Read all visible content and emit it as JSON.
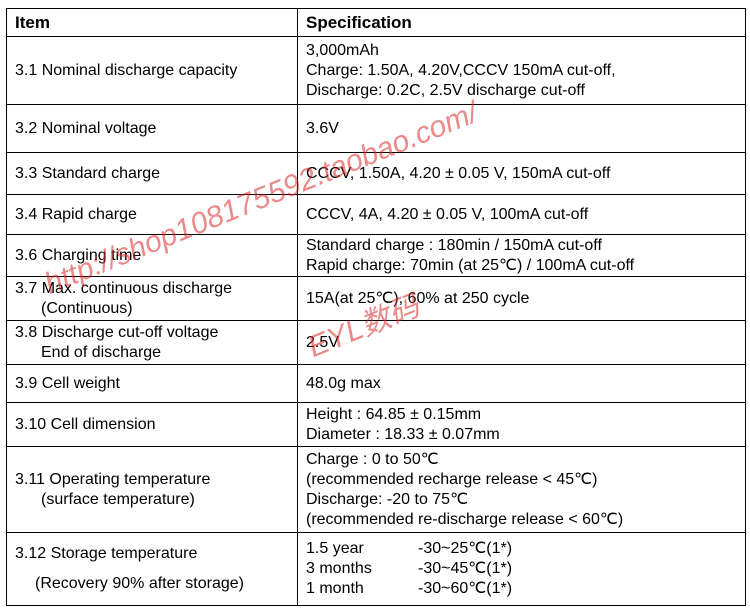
{
  "header": {
    "item": "Item",
    "specification": "Specification"
  },
  "rows": [
    {
      "item": [
        "3.1 Nominal discharge capacity"
      ],
      "spec": [
        "3,000mAh",
        "Charge: 1.50A, 4.20V,CCCV 150mA cut-off,",
        "Discharge: 0.2C, 2.5V discharge cut-off"
      ]
    },
    {
      "item": [
        "3.2 Nominal voltage"
      ],
      "spec": [
        "3.6V"
      ]
    },
    {
      "item": [
        "3.3 Standard charge"
      ],
      "spec": [
        "CCCV, 1.50A, 4.20 ± 0.05 V, 150mA cut-off"
      ]
    },
    {
      "item": [
        "3.4 Rapid charge"
      ],
      "spec": [
        "CCCV, 4A, 4.20 ± 0.05 V, 100mA cut-off"
      ]
    },
    {
      "item": [
        "3.6 Charging time"
      ],
      "spec": [
        "Standard charge : 180min / 150mA cut-off",
        "Rapid charge: 70min (at 25℃) / 100mA cut-off"
      ]
    },
    {
      "item": [
        "3.7 Max. continuous discharge",
        "(Continuous)"
      ],
      "spec": [
        "15A(at 25℃), 60% at 250 cycle"
      ]
    },
    {
      "item": [
        "3.8 Discharge cut-off voltage",
        "End of discharge"
      ],
      "spec": [
        "2.5V"
      ]
    },
    {
      "item": [
        "3.9 Cell weight"
      ],
      "spec": [
        "48.0g max"
      ]
    },
    {
      "item": [
        "3.10 Cell dimension"
      ],
      "spec": [
        "Height : 64.85 ± 0.15mm",
        "Diameter : 18.33 ± 0.07mm"
      ]
    },
    {
      "item": [
        "3.11 Operating temperature",
        "(surface temperature)"
      ],
      "spec": [
        "Charge :    0 to 50℃",
        "(recommended recharge release < 45℃)",
        "Discharge: -20 to 75℃",
        "(recommended re-discharge release < 60℃)"
      ]
    },
    {
      "item": [
        "3.12 Storage temperature",
        "(Recovery 90% after storage)"
      ],
      "spec": [
        [
          "1.5 year",
          "-30~25℃(1*)"
        ],
        [
          "3 months",
          "-30~45℃(1*)"
        ],
        [
          "1 month",
          "-30~60℃(1*)"
        ]
      ]
    }
  ],
  "watermark": {
    "url": "http://shop108175592.taobao.com/",
    "brand": "EYL数码"
  }
}
